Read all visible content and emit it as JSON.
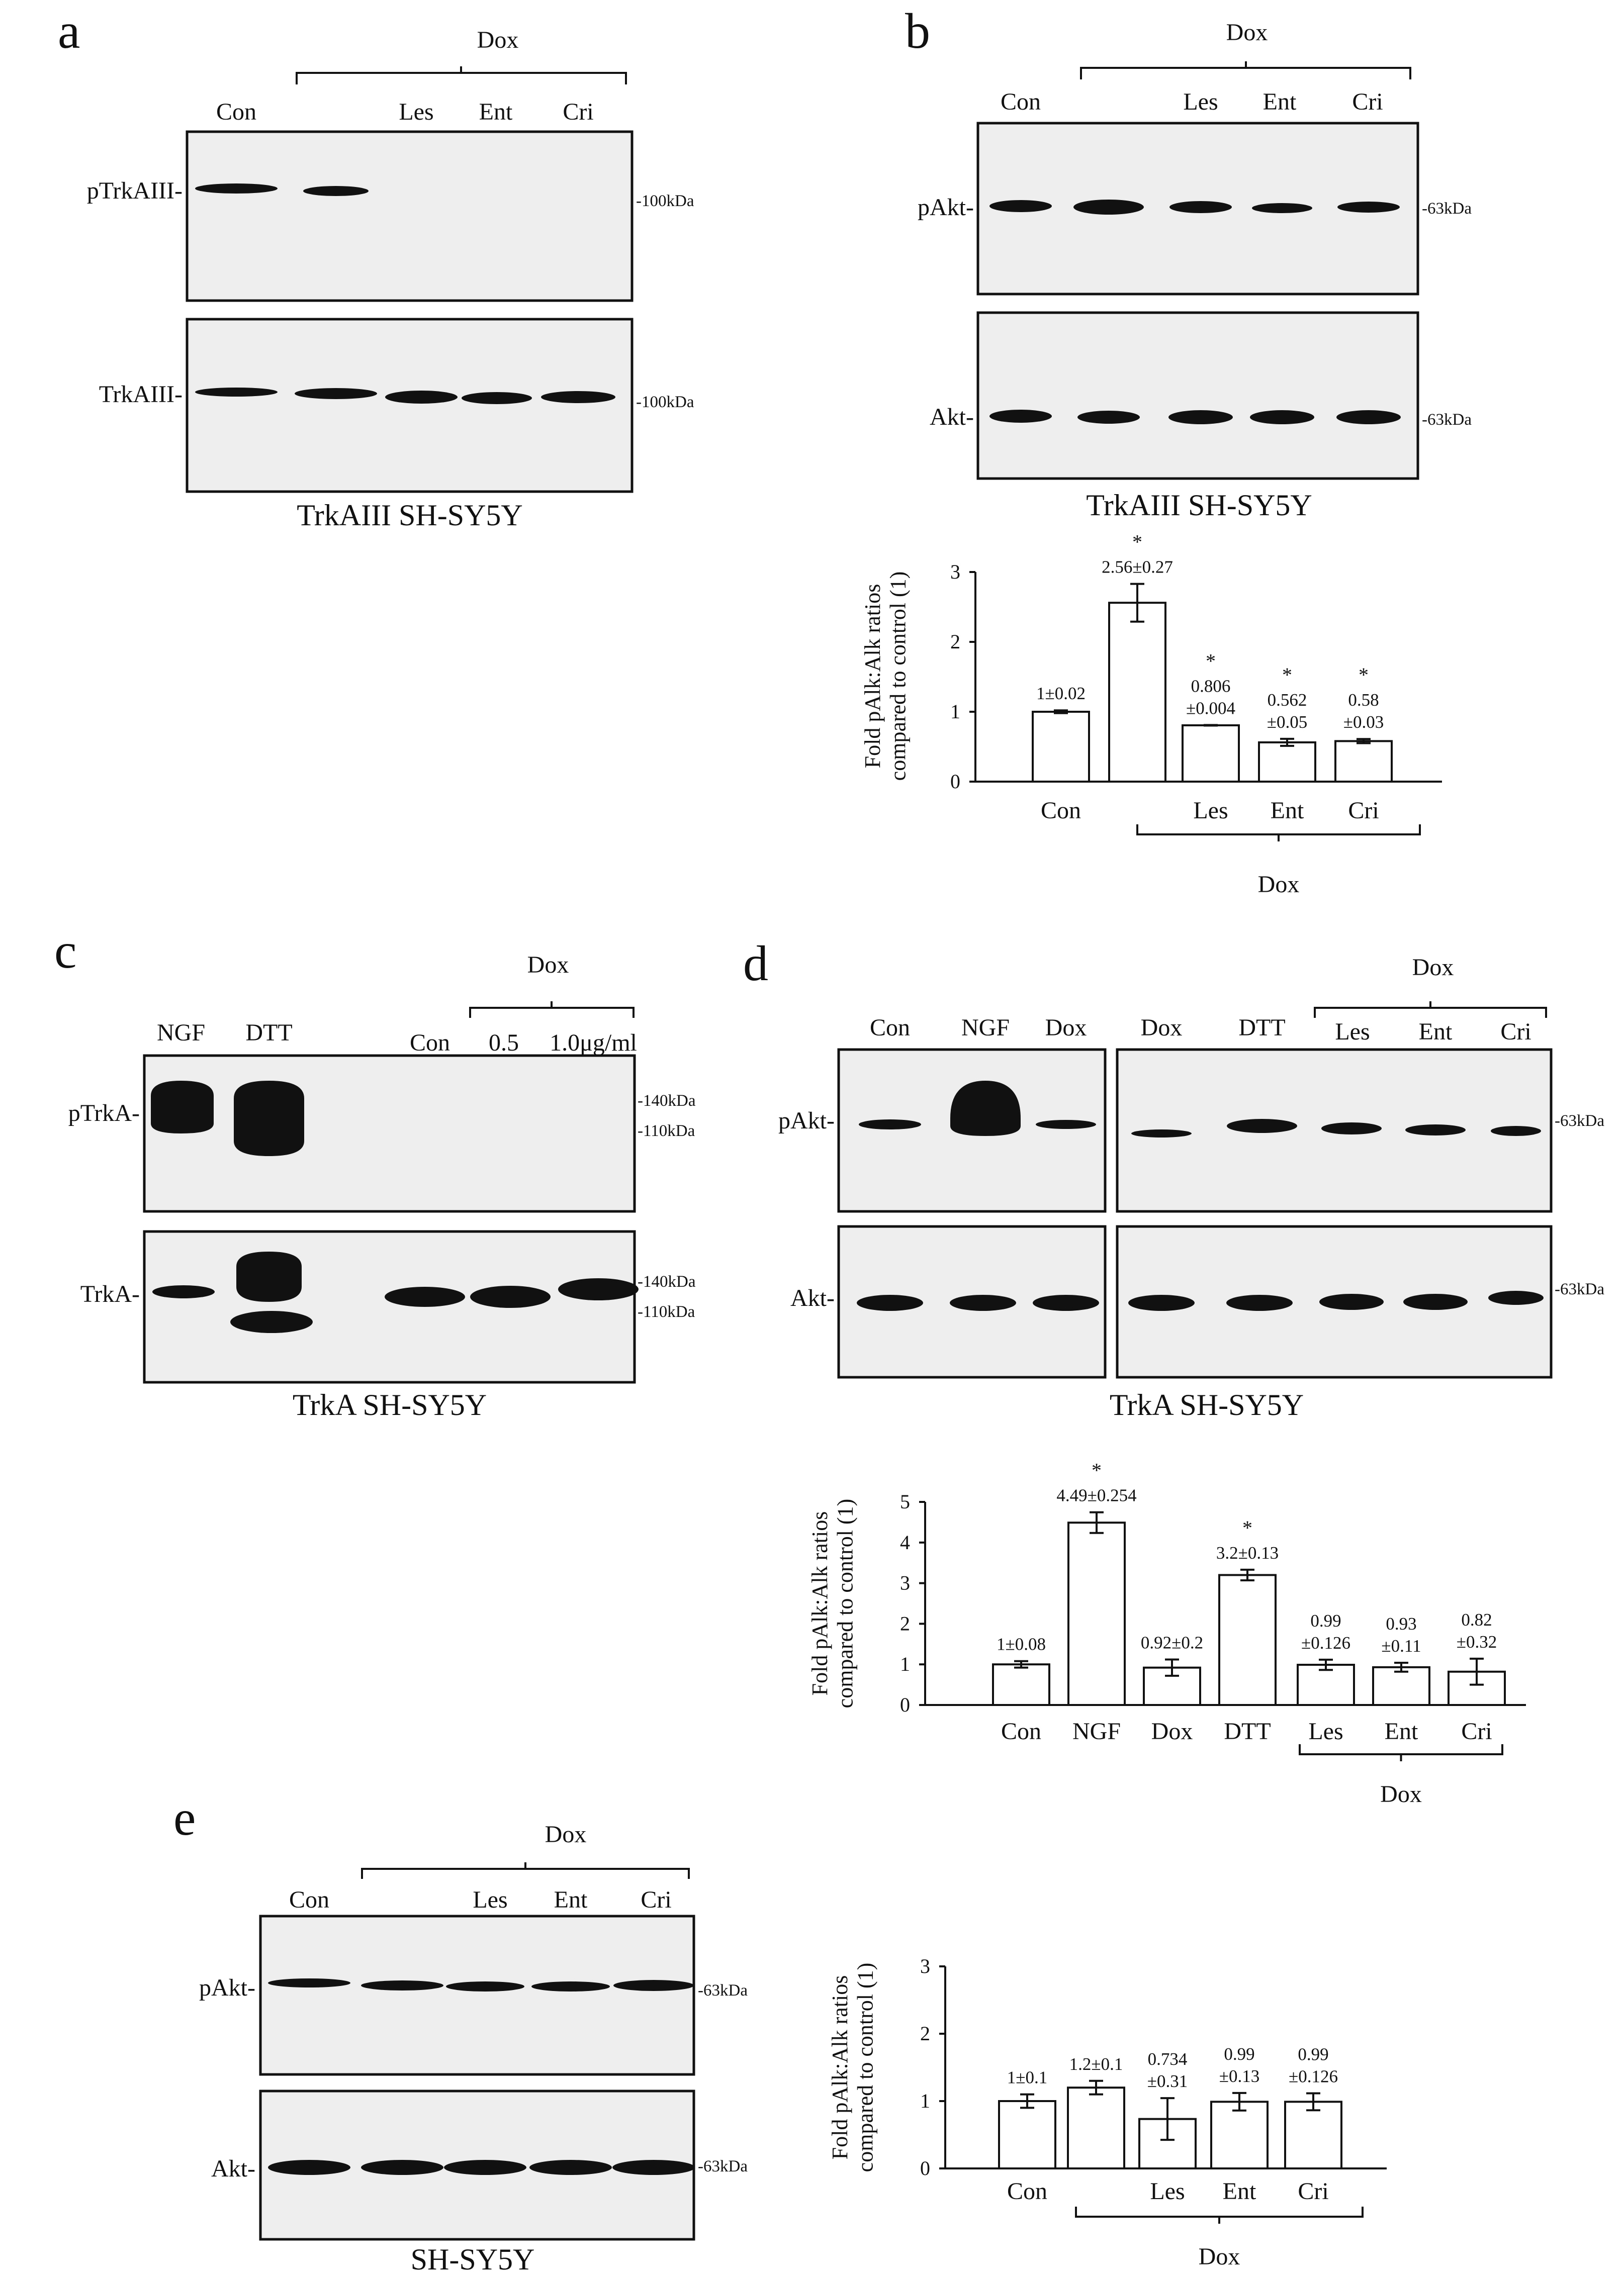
{
  "figure": {
    "panel_a": {
      "letter": "a",
      "dox_label": "Dox",
      "lanes": [
        "Con",
        "Les",
        "Ent",
        "Cri"
      ],
      "rows": [
        "pTrkAIII-",
        "TrkAIII-"
      ],
      "markers": [
        "-100kDa",
        "-100kDa"
      ],
      "caption": "TrkAIII SH-SY5Y"
    },
    "panel_b": {
      "letter": "b",
      "dox_label": "Dox",
      "lanes": [
        "Con",
        "Les",
        "Ent",
        "Cri"
      ],
      "rows": [
        "pAkt-",
        "Akt-"
      ],
      "markers": [
        "-63kDa",
        "-63kDa"
      ],
      "caption": "TrkAIII SH-SY5Y"
    },
    "panel_c": {
      "letter": "c",
      "dox_label": "Dox",
      "lanes": [
        "NGF",
        "DTT",
        "Con",
        "0.5",
        "1.0μg/ml"
      ],
      "rows": [
        "pTrkA-",
        "TrkA-"
      ],
      "markers": [
        "-140kDa",
        "-110kDa",
        "-140kDa",
        "-110kDa"
      ],
      "caption": "TrkA SH-SY5Y"
    },
    "panel_d": {
      "letter": "d",
      "dox_label": "Dox",
      "lanes_left": [
        "Con",
        "NGF",
        "Dox"
      ],
      "lanes_right": [
        "Dox",
        "DTT",
        "Les",
        "Ent",
        "Cri"
      ],
      "rows": [
        "pAkt-",
        "Akt-"
      ],
      "markers": [
        "-63kDa",
        "-63kDa"
      ],
      "caption": "TrkA SH-SY5Y"
    },
    "panel_e": {
      "letter": "e",
      "dox_label": "Dox",
      "lanes": [
        "Con",
        "Les",
        "Ent",
        "Cri"
      ],
      "rows": [
        "pAkt-",
        "Akt-"
      ],
      "markers": [
        "-63kDa",
        "-63kDa"
      ],
      "caption": "SH-SY5Y"
    }
  },
  "chart_data": [
    {
      "id": "b",
      "type": "bar",
      "ylabel": "Fold pAlk:Alk ratios compared to control (1)",
      "ylabel_lines": [
        "Fold pAlk:Alk ratios",
        "compared to control (1)"
      ],
      "ylim": [
        0,
        3
      ],
      "yticks": [
        "0",
        "1",
        "2",
        "3"
      ],
      "categories": [
        "Con",
        "",
        "Les",
        "Ent",
        "Cri"
      ],
      "values": [
        1,
        2.56,
        0.806,
        0.562,
        0.58
      ],
      "errors": [
        0.02,
        0.27,
        0.004,
        0.05,
        0.03
      ],
      "value_labels": [
        [
          "1±0.02"
        ],
        [
          "2.56±0.27"
        ],
        [
          "0.806",
          "±0.004"
        ],
        [
          "0.562",
          "±0.05"
        ],
        [
          "0.58",
          "±0.03"
        ]
      ],
      "significance": [
        "",
        "*",
        "*",
        "*",
        "*"
      ],
      "group_label": "Dox",
      "group_span": [
        1,
        4
      ]
    },
    {
      "id": "d",
      "type": "bar",
      "ylabel": "Fold pAlk:Alk ratios compared to control (1)",
      "ylabel_lines": [
        "Fold pAlk:Alk ratios",
        "compared to control (1)"
      ],
      "ylim": [
        0,
        5
      ],
      "yticks": [
        "0",
        "1",
        "2",
        "3",
        "4",
        "5"
      ],
      "categories": [
        "Con",
        "NGF",
        "Dox",
        "DTT",
        "Les",
        "Ent",
        "Cri"
      ],
      "values": [
        1,
        4.49,
        0.92,
        3.2,
        0.99,
        0.93,
        0.82
      ],
      "errors": [
        0.08,
        0.254,
        0.2,
        0.13,
        0.126,
        0.11,
        0.32
      ],
      "value_labels": [
        [
          "1±0.08"
        ],
        [
          "4.49±0.254"
        ],
        [
          "0.92±0.2"
        ],
        [
          "3.2±0.13"
        ],
        [
          "0.99",
          "±0.126"
        ],
        [
          "0.93",
          "±0.11"
        ],
        [
          "0.82",
          "±0.32"
        ]
      ],
      "significance": [
        "",
        "*",
        "",
        "*",
        "",
        "",
        ""
      ],
      "group_label": "Dox",
      "group_span": [
        4,
        6
      ]
    },
    {
      "id": "e",
      "type": "bar",
      "ylabel": "Fold pAlk:Alk ratios compared to control (1)",
      "ylabel_lines": [
        "Fold pAlk:Alk ratios",
        "compared to control (1)"
      ],
      "ylim": [
        0,
        3
      ],
      "yticks": [
        "0",
        "1",
        "2",
        "3"
      ],
      "categories": [
        "Con",
        "",
        "Les",
        "Ent",
        "Cri"
      ],
      "values": [
        1,
        1.2,
        0.734,
        0.99,
        0.99
      ],
      "errors": [
        0.1,
        0.1,
        0.31,
        0.13,
        0.126
      ],
      "value_labels": [
        [
          "1±0.1"
        ],
        [
          "1.2±0.1"
        ],
        [
          "0.734",
          "±0.31"
        ],
        [
          "0.99",
          "±0.13"
        ],
        [
          "0.99",
          "±0.126"
        ]
      ],
      "significance": [
        "",
        "",
        "",
        "",
        ""
      ],
      "group_label": "Dox",
      "group_span": [
        1,
        4
      ]
    }
  ]
}
